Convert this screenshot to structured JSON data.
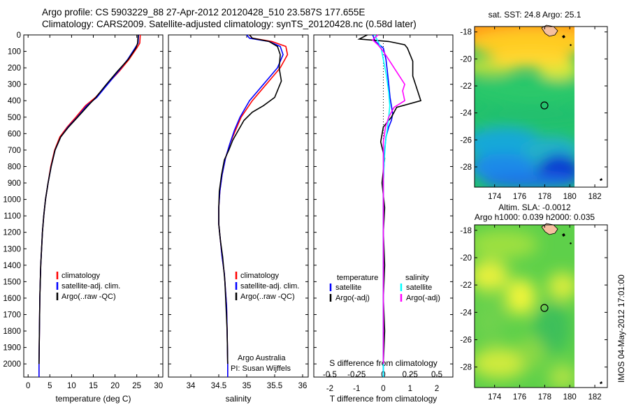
{
  "header": {
    "title_line1": "Argo profile: CS 5903229_88 27-Apr-2012 20120428_510 23.587S 177.655E",
    "title_line2": "Climatology: CARS2009. Satellite-adjusted climatology: synTS_20120428.nc (0.58d later)"
  },
  "colors": {
    "climatology": "#ff0000",
    "satellite": "#0000ff",
    "argo": "#000000",
    "salinity_satellite": "#00ffff",
    "salinity_argo": "#ff00ff"
  },
  "chart_data": [
    {
      "type": "line",
      "panel": "temperature",
      "xlabel": "temperature (deg C)",
      "xlim": [
        -1,
        31
      ],
      "xticks": [
        0,
        5,
        10,
        15,
        20,
        25,
        30
      ],
      "ylim": [
        2080,
        0
      ],
      "yticks": [
        0,
        100,
        200,
        300,
        400,
        500,
        600,
        700,
        800,
        900,
        1000,
        1100,
        1200,
        1300,
        1400,
        1500,
        1600,
        1700,
        1800,
        1900,
        2000
      ],
      "legend": [
        "climatology",
        "satellite-adj. clim.",
        "Argo(..raw -QC)"
      ],
      "series": [
        {
          "name": "climatology",
          "color": "#ff0000",
          "x": [
            25.8,
            25.7,
            25.0,
            23.2,
            21.0,
            18.2,
            15.5,
            13.2,
            11.0,
            9.0,
            7.3,
            6.1,
            5.2,
            4.6,
            4.0,
            3.6,
            3.3,
            3.1,
            2.9,
            2.8,
            2.7,
            2.6,
            2.5,
            2.5
          ],
          "y": [
            0,
            50,
            80,
            150,
            220,
            300,
            380,
            430,
            500,
            560,
            620,
            700,
            800,
            900,
            1000,
            1100,
            1200,
            1300,
            1400,
            1500,
            1600,
            1800,
            2000,
            2080
          ]
        },
        {
          "name": "satellite-adj. clim.",
          "color": "#0000ff",
          "x": [
            25.4,
            25.3,
            24.6,
            22.9,
            20.8,
            18.3,
            15.8,
            13.5,
            11.3,
            9.2,
            7.5,
            6.2,
            5.3,
            4.6,
            4.0,
            3.6,
            3.3,
            3.1,
            2.9,
            2.8,
            2.7,
            2.6,
            2.5,
            2.5
          ],
          "y": [
            0,
            50,
            80,
            150,
            220,
            300,
            380,
            430,
            500,
            560,
            620,
            700,
            800,
            900,
            1000,
            1100,
            1200,
            1300,
            1400,
            1500,
            1600,
            1800,
            2000,
            2080
          ]
        },
        {
          "name": "Argo(..raw -QC)",
          "color": "#000000",
          "x": [
            25.3,
            25.2,
            24.8,
            23.0,
            20.6,
            18.0,
            15.6,
            13.8,
            11.4,
            9.3,
            7.5,
            6.2,
            5.3,
            4.6,
            4.0,
            3.6,
            3.3,
            3.1,
            2.9,
            2.8,
            2.7,
            2.6,
            2.5
          ],
          "y": [
            0,
            50,
            80,
            150,
            220,
            300,
            380,
            430,
            500,
            560,
            620,
            700,
            800,
            900,
            1000,
            1100,
            1200,
            1300,
            1400,
            1500,
            1600,
            1800,
            2000
          ]
        }
      ]
    },
    {
      "type": "line",
      "panel": "salinity",
      "xlabel": "salinity",
      "xlim": [
        33.6,
        36.1
      ],
      "xticks": [
        34,
        34.5,
        35,
        35.5,
        36
      ],
      "ylim": [
        2080,
        0
      ],
      "legend": [
        "climatology",
        "satellite-adj. clim.",
        "Argo(..raw -QC)"
      ],
      "annotation": [
        "Argo Australia",
        "PI: Susan Wijffels"
      ],
      "series": [
        {
          "name": "climatology",
          "color": "#ff0000",
          "x": [
            35.05,
            35.1,
            35.45,
            35.7,
            35.73,
            35.6,
            35.35,
            35.1,
            34.9,
            34.8,
            34.7,
            34.62,
            34.56,
            34.52,
            34.5,
            34.5,
            34.53,
            34.56,
            34.6,
            34.62,
            34.64,
            34.65,
            34.66,
            34.66
          ],
          "y": [
            0,
            20,
            40,
            70,
            120,
            200,
            300,
            400,
            500,
            580,
            660,
            750,
            850,
            950,
            1050,
            1150,
            1250,
            1350,
            1450,
            1550,
            1650,
            1800,
            2000,
            2080
          ]
        },
        {
          "name": "satellite-adj. clim.",
          "color": "#0000ff",
          "x": [
            35.0,
            35.05,
            35.4,
            35.6,
            35.65,
            35.55,
            35.3,
            35.05,
            34.88,
            34.78,
            34.7,
            34.62,
            34.56,
            34.52,
            34.5,
            34.5,
            34.53,
            34.56,
            34.6,
            34.62,
            34.64,
            34.65,
            34.66,
            34.66
          ],
          "y": [
            0,
            20,
            40,
            70,
            120,
            200,
            300,
            400,
            500,
            580,
            660,
            750,
            850,
            950,
            1050,
            1150,
            1250,
            1350,
            1450,
            1550,
            1650,
            1800,
            2000,
            2080
          ]
        },
        {
          "name": "Argo(..raw -QC)",
          "color": "#000000",
          "x": [
            35.05,
            35.1,
            35.4,
            35.55,
            35.6,
            35.58,
            35.62,
            35.5,
            35.3,
            35.1,
            34.95,
            34.85,
            34.75,
            34.68,
            34.6,
            34.55,
            34.51,
            34.5,
            34.5,
            34.53,
            34.57,
            34.61,
            34.63,
            34.65,
            34.66
          ],
          "y": [
            0,
            20,
            40,
            70,
            120,
            200,
            280,
            380,
            430,
            470,
            520,
            580,
            640,
            700,
            760,
            850,
            950,
            1050,
            1150,
            1250,
            1350,
            1500,
            1650,
            1800,
            2000
          ]
        }
      ]
    },
    {
      "type": "line",
      "panel": "difference",
      "xlabel": "T difference from climatology",
      "xlabel_top": "S difference from climatology",
      "xlim_T": [
        -2.6,
        2.6
      ],
      "xticks_T": [
        -2,
        -1,
        0,
        1,
        2
      ],
      "xlim_S": [
        -0.65,
        0.65
      ],
      "xticks_S": [
        -0.5,
        -0.25,
        0,
        0.25,
        0.5
      ],
      "xtick_labels_S": [
        "-0.5",
        "-0.25",
        "0",
        "0.25",
        "0.5"
      ],
      "ylim": [
        2080,
        0
      ],
      "legend": {
        "temperature_title": "temperature",
        "salinity_title": "salinity",
        "temperature": [
          "satellite",
          "Argo(-adj)"
        ],
        "salinity": [
          "satellite",
          "Argo(-adj)"
        ]
      },
      "series": [
        {
          "name": "satellite",
          "group": "temperature",
          "color": "#0000ff",
          "x": [
            -0.4,
            -0.3,
            0.0,
            0.1,
            0.15,
            0.2,
            0.25,
            0.3,
            0.35,
            0.3,
            0.2,
            0.1,
            0.05,
            0.02,
            0.0,
            0.0,
            0.0,
            0.0,
            0.0,
            0.0,
            0.0,
            0.0
          ],
          "y": [
            0,
            40,
            80,
            150,
            220,
            300,
            380,
            430,
            480,
            520,
            560,
            620,
            700,
            800,
            900,
            1000,
            1200,
            1400,
            1600,
            1800,
            2000,
            2080
          ]
        },
        {
          "name": "Argo(-adj)",
          "group": "temperature",
          "color": "#000000",
          "x": [
            -0.6,
            -0.9,
            0.2,
            0.8,
            0.9,
            1.0,
            1.1,
            1.1,
            1.4,
            0.5,
            0.3,
            0.0,
            -0.1,
            0.05,
            -0.05,
            0.05,
            0.0,
            0.05,
            0.0,
            0.05,
            0.0
          ],
          "y": [
            0,
            25,
            40,
            60,
            80,
            120,
            160,
            250,
            400,
            440,
            500,
            560,
            650,
            750,
            900,
            1050,
            1200,
            1400,
            1600,
            1800,
            2000
          ]
        },
        {
          "name": "satellite",
          "group": "salinity",
          "color": "#00ffff",
          "x": [
            -0.08,
            -0.05,
            -0.02,
            0.0,
            0.03,
            0.05,
            0.06,
            0.05,
            0.04,
            0.02,
            0.01,
            0.0,
            0.0,
            0.0,
            0.0,
            0.0,
            0.0
          ],
          "y": [
            0,
            40,
            80,
            150,
            250,
            350,
            430,
            500,
            560,
            650,
            750,
            900,
            1100,
            1400,
            1700,
            2000,
            2080
          ]
        },
        {
          "name": "Argo(-adj)",
          "group": "salinity",
          "color": "#ff00ff",
          "x": [
            -0.05,
            -0.1,
            -0.05,
            0.0,
            0.05,
            0.1,
            0.15,
            0.2,
            0.18,
            0.2,
            0.1,
            0.05,
            0.02,
            0.0,
            0.0,
            0.0,
            0.0,
            0.0
          ],
          "y": [
            0,
            30,
            60,
            100,
            150,
            200,
            250,
            300,
            340,
            400,
            440,
            500,
            560,
            650,
            800,
            1100,
            1500,
            2000
          ]
        }
      ]
    },
    {
      "type": "heatmap",
      "panel": "sst_map",
      "title": "sat. SST: 24.8  Argo: 25.1",
      "xticks": [
        174,
        176,
        178,
        180,
        182
      ],
      "yticks": [
        -18,
        -20,
        -22,
        -24,
        -26,
        -28
      ],
      "marker": {
        "lon": 177.655,
        "lat": -23.587
      }
    },
    {
      "type": "heatmap",
      "panel": "sla_map",
      "title_line1": "Altim. SLA: -0.0012",
      "title_line2": "Argo h1000: 0.039  h2000: 0.035",
      "xticks": [
        174,
        176,
        178,
        180,
        182
      ],
      "yticks": [
        -18,
        -20,
        -22,
        -24,
        -26,
        -28
      ],
      "marker": {
        "lon": 177.655,
        "lat": -23.587
      }
    }
  ],
  "footer": {
    "credit": "IMOS 04-May-2012 17:01:00"
  }
}
